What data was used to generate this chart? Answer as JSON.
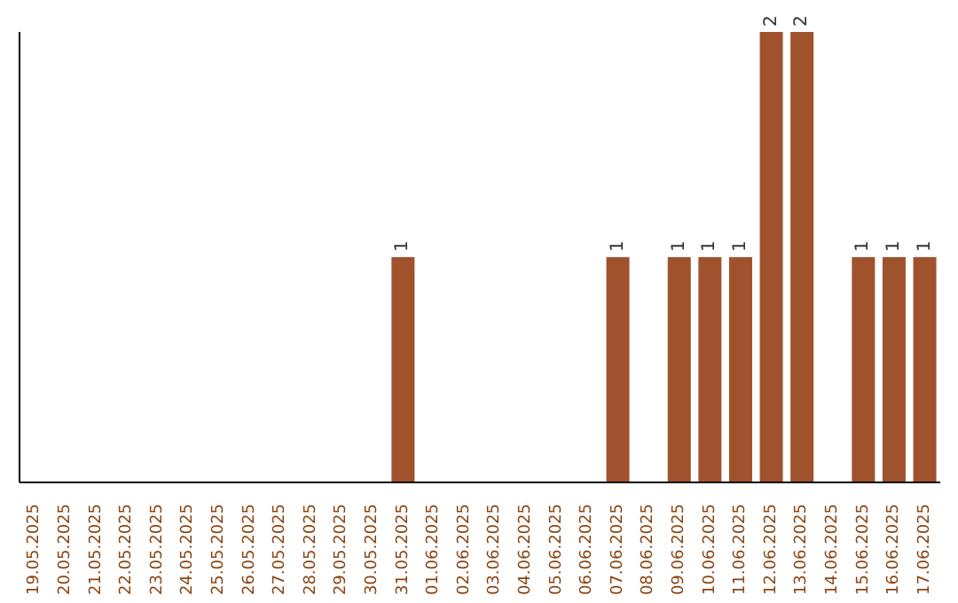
{
  "chart_data": {
    "type": "bar",
    "categories": [
      "19.05.2025",
      "20.05.2025",
      "21.05.2025",
      "22.05.2025",
      "23.05.2025",
      "24.05.2025",
      "25.05.2025",
      "26.05.2025",
      "27.05.2025",
      "28.05.2025",
      "29.05.2025",
      "30.05.2025",
      "31.05.2025",
      "01.06.2025",
      "02.06.2025",
      "03.06.2025",
      "04.06.2025",
      "05.06.2025",
      "06.06.2025",
      "07.06.2025",
      "08.06.2025",
      "09.06.2025",
      "10.06.2025",
      "11.06.2025",
      "12.06.2025",
      "13.06.2025",
      "14.06.2025",
      "15.06.2025",
      "16.06.2025",
      "17.06.2025"
    ],
    "values": [
      null,
      null,
      null,
      null,
      null,
      null,
      null,
      null,
      null,
      null,
      null,
      null,
      1,
      null,
      null,
      null,
      null,
      null,
      null,
      1,
      null,
      1,
      1,
      1,
      2,
      2,
      null,
      1,
      1,
      1
    ],
    "value_labels": [
      null,
      null,
      null,
      null,
      null,
      null,
      null,
      null,
      null,
      null,
      null,
      null,
      "1",
      null,
      null,
      null,
      null,
      null,
      null,
      "1",
      null,
      "1",
      "1",
      "1",
      "2",
      "2",
      null,
      "1",
      "1",
      "1"
    ],
    "color": "#a0522d",
    "tick_labels": "x"
  }
}
